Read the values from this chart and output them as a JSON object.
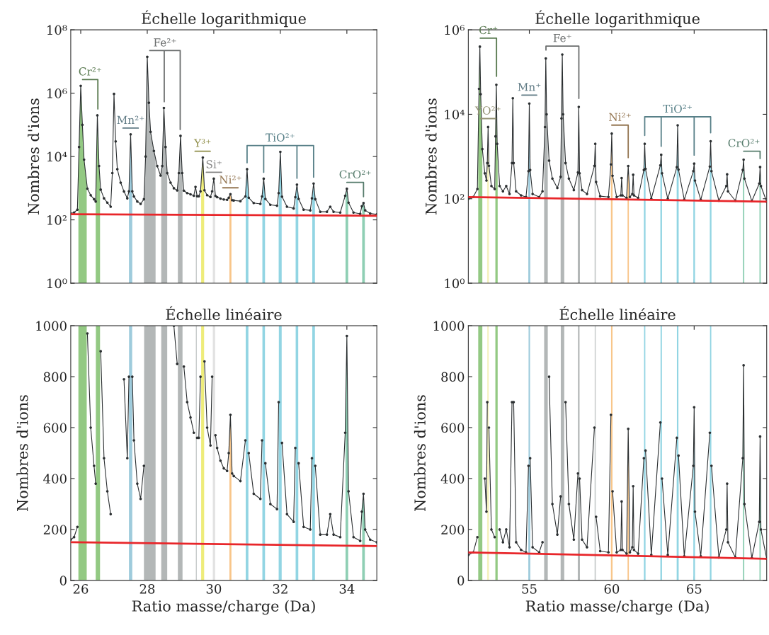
{
  "chart_data": [
    {
      "type": "line",
      "title": "Échelle logarithmique",
      "ylabel": "Nombres d'ions",
      "log": "y",
      "tick_labels": "y",
      "xlim": [
        25.7,
        34.9
      ],
      "xticks": [
        {
          "value": 26,
          "label": null
        },
        {
          "value": 28,
          "label": null
        },
        {
          "value": 30,
          "label": null
        },
        {
          "value": 32,
          "label": null
        },
        {
          "value": 34,
          "label": null
        }
      ],
      "ylim": [
        1,
        100000000
      ],
      "yticks": [
        {
          "value": 1,
          "label": "10⁰"
        },
        {
          "value": 100,
          "label": "10²"
        },
        {
          "value": 10000,
          "label": "10⁴"
        },
        {
          "value": 1000000,
          "label": "10⁶"
        },
        {
          "value": 100000000,
          "label": "10⁸"
        }
      ],
      "bands": [
        {
          "axis": "x",
          "from": 25.93,
          "to": 26.18,
          "color": "#93c983",
          "label": "Cr²⁺"
        },
        {
          "axis": "x",
          "from": 26.45,
          "to": 26.58,
          "color": "#93c983"
        },
        {
          "axis": "x",
          "from": 27.45,
          "to": 27.55,
          "color": "#9ecbdc",
          "label": "Mn²⁺"
        },
        {
          "axis": "x",
          "from": 27.9,
          "to": 28.25,
          "color": "#b3b7b7",
          "label": "Fe²⁺"
        },
        {
          "axis": "x",
          "from": 28.42,
          "to": 28.6,
          "color": "#b3b7b7"
        },
        {
          "axis": "x",
          "from": 28.92,
          "to": 29.06,
          "color": "#b3b7b7"
        },
        {
          "axis": "x",
          "from": 29.46,
          "to": 29.49,
          "color": "#c8cccc"
        },
        {
          "axis": "x",
          "from": 29.62,
          "to": 29.71,
          "color": "#eeec7a",
          "label": "Y³⁺"
        },
        {
          "axis": "x",
          "from": 29.97,
          "to": 30.04,
          "color": "#e2e2e2",
          "label": "Si⁺"
        },
        {
          "axis": "x",
          "from": 30.47,
          "to": 30.53,
          "color": "#f8c68a",
          "label": "Ni²⁺"
        },
        {
          "axis": "x",
          "from": 30.96,
          "to": 31.04,
          "color": "#92d5e3",
          "label": "TiO²⁺"
        },
        {
          "axis": "x",
          "from": 31.46,
          "to": 31.54,
          "color": "#92d5e3"
        },
        {
          "axis": "x",
          "from": 31.95,
          "to": 32.04,
          "color": "#92d5e3"
        },
        {
          "axis": "x",
          "from": 32.46,
          "to": 32.54,
          "color": "#92d5e3"
        },
        {
          "axis": "x",
          "from": 32.96,
          "to": 33.04,
          "color": "#92d5e3"
        },
        {
          "axis": "x",
          "from": 33.96,
          "to": 34.04,
          "color": "#8fcfb4",
          "label": "CrO²⁺"
        },
        {
          "axis": "x",
          "from": 34.46,
          "to": 34.54,
          "color": "#8fcfb4"
        }
      ],
      "series": [
        {
          "color": "#2b2f31",
          "marker": "circle",
          "x": [
            25.7,
            25.8,
            25.9,
            25.95,
            26.0,
            26.05,
            26.1,
            26.2,
            26.3,
            26.4,
            26.45,
            26.5,
            26.55,
            26.6,
            26.7,
            26.8,
            26.9,
            26.95,
            27.0,
            27.05,
            27.1,
            27.2,
            27.3,
            27.4,
            27.45,
            27.5,
            27.55,
            27.6,
            27.7,
            27.8,
            27.9,
            27.95,
            28.0,
            28.05,
            28.1,
            28.2,
            28.3,
            28.4,
            28.45,
            28.5,
            28.55,
            28.6,
            28.7,
            28.8,
            28.9,
            28.95,
            29.0,
            29.05,
            29.1,
            29.2,
            29.3,
            29.4,
            29.45,
            29.5,
            29.55,
            29.6,
            29.67,
            29.72,
            29.8,
            29.9,
            29.95,
            30.0,
            30.05,
            30.1,
            30.2,
            30.3,
            30.4,
            30.45,
            30.5,
            30.55,
            30.6,
            30.8,
            30.95,
            31.0,
            31.05,
            31.2,
            31.4,
            31.45,
            31.5,
            31.55,
            31.7,
            31.9,
            31.95,
            32.0,
            32.05,
            32.2,
            32.4,
            32.45,
            32.5,
            32.55,
            32.7,
            32.9,
            32.95,
            33.0,
            33.05,
            33.2,
            33.4,
            33.5,
            33.6,
            33.8,
            33.95,
            34.0,
            34.05,
            34.2,
            34.4,
            34.45,
            34.5,
            34.55,
            34.7,
            34.9
          ],
          "values": [
            160,
            170,
            210,
            20000,
            1700000,
            100000,
            8000,
            970,
            600,
            450,
            380,
            200000,
            5000,
            900,
            480,
            350,
            260,
            3000,
            950000,
            30000,
            4000,
            1500,
            790,
            480,
            800,
            50000,
            800,
            550,
            380,
            320,
            450,
            10000,
            14000000,
            500000,
            60000,
            15000,
            5000,
            2500,
            5000,
            340000,
            20000,
            3000,
            1500,
            1000,
            850,
            3000,
            45000,
            3000,
            840,
            700,
            640,
            580,
            1100,
            560,
            560,
            800,
            9300,
            860,
            600,
            530,
            800,
            2000,
            570,
            520,
            470,
            440,
            430,
            500,
            650,
            420,
            410,
            390,
            550,
            4000,
            500,
            340,
            320,
            550,
            2000,
            460,
            300,
            280,
            700,
            14000,
            540,
            260,
            230,
            520,
            1300,
            460,
            210,
            200,
            480,
            1400,
            450,
            180,
            180,
            260,
            180,
            170,
            580,
            960,
            350,
            170,
            155,
            270,
            340,
            200,
            160,
            150
          ]
        },
        {
          "color": "#e8262a",
          "x": [
            25.7,
            34.9
          ],
          "values": [
            150,
            135
          ]
        }
      ]
    },
    {
      "type": "line",
      "title": "Échelle logarithmique",
      "ylabel": "Nombres d'ions",
      "log": "y",
      "tick_labels": "y",
      "xlim": [
        51.3,
        69.4
      ],
      "xticks": [
        {
          "value": 55,
          "label": null
        },
        {
          "value": 60,
          "label": null
        },
        {
          "value": 65,
          "label": null
        }
      ],
      "ylim": [
        1,
        1000000
      ],
      "yticks": [
        {
          "value": 1,
          "label": "10⁰"
        },
        {
          "value": 100,
          "label": "10²"
        },
        {
          "value": 10000,
          "label": "10⁴"
        },
        {
          "value": 1000000,
          "label": "10⁶"
        }
      ],
      "bands": [
        {
          "axis": "x",
          "from": 51.9,
          "to": 52.15,
          "color": "#93c983",
          "label": "Cr⁺"
        },
        {
          "axis": "x",
          "from": 52.44,
          "to": 52.56,
          "color": "#f5f2c0",
          "label": "YO²⁺"
        },
        {
          "axis": "x",
          "from": 52.94,
          "to": 53.08,
          "color": "#93c983"
        },
        {
          "axis": "x",
          "from": 54.94,
          "to": 55.06,
          "color": "#9ecbdc",
          "label": "Mn⁺"
        },
        {
          "axis": "x",
          "from": 55.9,
          "to": 56.12,
          "color": "#b3b7b7",
          "label": "Fe⁺"
        },
        {
          "axis": "x",
          "from": 56.9,
          "to": 57.12,
          "color": "#b3b7b7"
        },
        {
          "axis": "x",
          "from": 57.94,
          "to": 58.07,
          "color": "#b3b7b7"
        },
        {
          "axis": "x",
          "from": 58.96,
          "to": 59.04,
          "color": "#c8cccc"
        },
        {
          "axis": "x",
          "from": 59.95,
          "to": 60.05,
          "color": "#f8c68a",
          "label": "Ni²⁺"
        },
        {
          "axis": "x",
          "from": 60.96,
          "to": 61.04,
          "color": "#f8c68a"
        },
        {
          "axis": "x",
          "from": 61.95,
          "to": 62.05,
          "color": "#92d5e3",
          "label": "TiO²⁺"
        },
        {
          "axis": "x",
          "from": 62.95,
          "to": 63.05,
          "color": "#92d5e3"
        },
        {
          "axis": "x",
          "from": 63.94,
          "to": 64.06,
          "color": "#92d5e3"
        },
        {
          "axis": "x",
          "from": 64.95,
          "to": 65.05,
          "color": "#92d5e3"
        },
        {
          "axis": "x",
          "from": 65.95,
          "to": 66.05,
          "color": "#92d5e3"
        },
        {
          "axis": "x",
          "from": 67.96,
          "to": 68.04,
          "color": "#8fcfb4",
          "label": "CrO²⁺"
        },
        {
          "axis": "x",
          "from": 68.96,
          "to": 69.04,
          "color": "#8fcfb4"
        }
      ],
      "series": [
        {
          "color": "#2b2f31",
          "marker": "circle",
          "x": [
            51.3,
            51.6,
            51.85,
            51.95,
            52.0,
            52.05,
            52.15,
            52.3,
            52.4,
            52.45,
            52.5,
            52.55,
            52.7,
            52.9,
            52.95,
            53.0,
            53.05,
            53.2,
            53.4,
            53.6,
            53.8,
            53.95,
            54.0,
            54.05,
            54.2,
            54.5,
            54.8,
            54.95,
            55.0,
            55.05,
            55.2,
            55.6,
            55.8,
            55.95,
            56.0,
            56.05,
            56.2,
            56.4,
            56.7,
            56.9,
            56.95,
            57.0,
            57.05,
            57.2,
            57.4,
            57.7,
            57.95,
            58.0,
            58.05,
            58.2,
            58.5,
            58.95,
            59.0,
            59.05,
            59.3,
            59.8,
            59.95,
            60.0,
            60.05,
            60.3,
            60.55,
            60.6,
            60.65,
            60.9,
            61.0,
            61.1,
            61.25,
            61.3,
            61.35,
            61.6,
            61.95,
            62.0,
            62.05,
            62.4,
            62.95,
            63.0,
            63.05,
            63.4,
            63.95,
            64.0,
            64.05,
            64.4,
            64.95,
            65.0,
            65.05,
            65.4,
            65.95,
            66.0,
            66.05,
            66.5,
            66.95,
            67.0,
            67.05,
            67.5,
            67.95,
            68.0,
            68.05,
            68.5,
            68.95,
            69.0,
            69.05,
            69.4
          ],
          "values": [
            100,
            110,
            170,
            40000,
            400000,
            30000,
            1500,
            400,
            270,
            700,
            5000,
            600,
            200,
            170,
            3000,
            50000,
            2000,
            200,
            150,
            200,
            130,
            700,
            24000,
            700,
            150,
            120,
            110,
            450,
            18000,
            480,
            130,
            110,
            150,
            5000,
            210000,
            10000,
            800,
            300,
            180,
            330,
            8000,
            260000,
            10000,
            700,
            300,
            160,
            420,
            15000,
            400,
            160,
            130,
            600,
            2000,
            250,
            115,
            110,
            650,
            3500,
            350,
            110,
            120,
            310,
            120,
            105,
            595,
            110,
            130,
            370,
            120,
            105,
            480,
            2000,
            510,
            100,
            620,
            1100,
            400,
            100,
            560,
            5500,
            490,
            95,
            450,
            680,
            270,
            95,
            580,
            2300,
            450,
            90,
            200,
            380,
            150,
            90,
            480,
            845,
            300,
            88,
            230,
            565,
            200,
            85
          ]
        },
        {
          "color": "#e8262a",
          "x": [
            51.3,
            69.4
          ],
          "values": [
            110,
            85
          ]
        }
      ]
    },
    {
      "type": "line",
      "title": "Échelle linéaire",
      "ylabel": "Nombres d'ions",
      "xlabel": "Ratio masse/charge (Da)",
      "xlim": [
        25.7,
        34.9
      ],
      "xticks": [
        26,
        28,
        30,
        32,
        34
      ],
      "ylim": [
        0,
        1000
      ],
      "yticks": [
        0,
        200,
        400,
        600,
        800,
        1000
      ],
      "bands": [
        {
          "axis": "x",
          "from": 25.93,
          "to": 26.18,
          "color": "#93c983"
        },
        {
          "axis": "x",
          "from": 26.45,
          "to": 26.58,
          "color": "#93c983"
        },
        {
          "axis": "x",
          "from": 27.45,
          "to": 27.55,
          "color": "#9ecbdc"
        },
        {
          "axis": "x",
          "from": 27.9,
          "to": 28.25,
          "color": "#b3b7b7"
        },
        {
          "axis": "x",
          "from": 28.42,
          "to": 28.6,
          "color": "#b3b7b7"
        },
        {
          "axis": "x",
          "from": 28.92,
          "to": 29.06,
          "color": "#b3b7b7"
        },
        {
          "axis": "x",
          "from": 29.46,
          "to": 29.49,
          "color": "#c8cccc"
        },
        {
          "axis": "x",
          "from": 29.62,
          "to": 29.71,
          "color": "#eeec7a"
        },
        {
          "axis": "x",
          "from": 29.97,
          "to": 30.04,
          "color": "#e2e2e2"
        },
        {
          "axis": "x",
          "from": 30.47,
          "to": 30.53,
          "color": "#f8c68a"
        },
        {
          "axis": "x",
          "from": 30.96,
          "to": 31.04,
          "color": "#92d5e3"
        },
        {
          "axis": "x",
          "from": 31.46,
          "to": 31.54,
          "color": "#92d5e3"
        },
        {
          "axis": "x",
          "from": 31.95,
          "to": 32.04,
          "color": "#92d5e3"
        },
        {
          "axis": "x",
          "from": 32.46,
          "to": 32.54,
          "color": "#92d5e3"
        },
        {
          "axis": "x",
          "from": 32.96,
          "to": 33.04,
          "color": "#92d5e3"
        },
        {
          "axis": "x",
          "from": 33.96,
          "to": 34.04,
          "color": "#8fcfb4"
        },
        {
          "axis": "x",
          "from": 34.46,
          "to": 34.54,
          "color": "#8fcfb4"
        }
      ],
      "series": [
        {
          "color": "#2b2f31",
          "marker": "circle",
          "x": [
            25.7,
            25.8,
            25.9,
            25.95,
            26.0,
            26.05,
            26.1,
            26.2,
            26.3,
            26.4,
            26.45,
            26.5,
            26.55,
            26.6,
            26.7,
            26.8,
            26.9,
            26.95,
            27.0,
            27.05,
            27.1,
            27.2,
            27.3,
            27.4,
            27.45,
            27.5,
            27.55,
            27.6,
            27.7,
            27.8,
            27.9,
            27.95,
            28.0,
            28.05,
            28.1,
            28.2,
            28.3,
            28.4,
            28.45,
            28.5,
            28.55,
            28.6,
            28.7,
            28.8,
            28.9,
            28.95,
            29.0,
            29.05,
            29.1,
            29.2,
            29.3,
            29.4,
            29.45,
            29.5,
            29.55,
            29.6,
            29.67,
            29.72,
            29.8,
            29.9,
            29.95,
            30.0,
            30.05,
            30.1,
            30.2,
            30.3,
            30.4,
            30.45,
            30.5,
            30.55,
            30.6,
            30.8,
            30.95,
            31.0,
            31.05,
            31.2,
            31.4,
            31.45,
            31.5,
            31.55,
            31.7,
            31.9,
            31.95,
            32.0,
            32.05,
            32.2,
            32.4,
            32.45,
            32.5,
            32.55,
            32.7,
            32.9,
            32.95,
            33.0,
            33.05,
            33.2,
            33.4,
            33.5,
            33.6,
            33.8,
            33.95,
            34.0,
            34.05,
            34.2,
            34.4,
            34.45,
            34.5,
            34.55,
            34.7,
            34.9
          ],
          "values": [
            160,
            170,
            210,
            null,
            null,
            null,
            null,
            970,
            600,
            450,
            380,
            null,
            null,
            900,
            480,
            350,
            260,
            null,
            null,
            null,
            null,
            null,
            790,
            480,
            800,
            null,
            800,
            550,
            380,
            320,
            450,
            null,
            null,
            null,
            null,
            null,
            null,
            null,
            null,
            null,
            null,
            null,
            null,
            1000,
            850,
            null,
            null,
            null,
            840,
            700,
            640,
            580,
            null,
            560,
            560,
            800,
            null,
            860,
            600,
            530,
            800,
            null,
            570,
            520,
            470,
            440,
            430,
            500,
            650,
            420,
            410,
            390,
            550,
            null,
            500,
            340,
            320,
            550,
            null,
            460,
            300,
            280,
            700,
            null,
            540,
            260,
            230,
            520,
            null,
            460,
            210,
            200,
            480,
            null,
            450,
            180,
            180,
            260,
            180,
            170,
            580,
            960,
            350,
            170,
            155,
            270,
            340,
            200,
            160,
            150
          ]
        },
        {
          "color": "#e8262a",
          "x": [
            25.7,
            34.9
          ],
          "values": [
            150,
            135
          ]
        }
      ]
    },
    {
      "type": "line",
      "title": "Échelle linéaire",
      "ylabel": "Nombres d'ions",
      "xlabel": "Ratio masse/charge (Da)",
      "xlim": [
        51.3,
        69.4
      ],
      "xticks": [
        55,
        60,
        65
      ],
      "ylim": [
        0,
        1000
      ],
      "yticks": [
        0,
        200,
        400,
        600,
        800,
        1000
      ],
      "bands": [
        {
          "axis": "x",
          "from": 51.9,
          "to": 52.15,
          "color": "#93c983"
        },
        {
          "axis": "x",
          "from": 52.44,
          "to": 52.56,
          "color": "#f5f2c0"
        },
        {
          "axis": "x",
          "from": 52.94,
          "to": 53.08,
          "color": "#93c983"
        },
        {
          "axis": "x",
          "from": 54.94,
          "to": 55.06,
          "color": "#9ecbdc"
        },
        {
          "axis": "x",
          "from": 55.9,
          "to": 56.12,
          "color": "#b3b7b7"
        },
        {
          "axis": "x",
          "from": 56.9,
          "to": 57.12,
          "color": "#b3b7b7"
        },
        {
          "axis": "x",
          "from": 57.94,
          "to": 58.07,
          "color": "#b3b7b7"
        },
        {
          "axis": "x",
          "from": 58.96,
          "to": 59.04,
          "color": "#c8cccc"
        },
        {
          "axis": "x",
          "from": 59.95,
          "to": 60.05,
          "color": "#f8c68a"
        },
        {
          "axis": "x",
          "from": 60.96,
          "to": 61.04,
          "color": "#f8c68a"
        },
        {
          "axis": "x",
          "from": 61.95,
          "to": 62.05,
          "color": "#92d5e3"
        },
        {
          "axis": "x",
          "from": 62.95,
          "to": 63.05,
          "color": "#92d5e3"
        },
        {
          "axis": "x",
          "from": 63.94,
          "to": 64.06,
          "color": "#92d5e3"
        },
        {
          "axis": "x",
          "from": 64.95,
          "to": 65.05,
          "color": "#92d5e3"
        },
        {
          "axis": "x",
          "from": 65.95,
          "to": 66.05,
          "color": "#92d5e3"
        },
        {
          "axis": "x",
          "from": 67.96,
          "to": 68.04,
          "color": "#8fcfb4"
        },
        {
          "axis": "x",
          "from": 68.96,
          "to": 69.04,
          "color": "#8fcfb4"
        }
      ],
      "series": [
        {
          "color": "#2b2f31",
          "marker": "circle",
          "x": [
            51.3,
            51.6,
            51.85,
            51.95,
            52.0,
            52.05,
            52.15,
            52.3,
            52.4,
            52.45,
            52.5,
            52.55,
            52.7,
            52.9,
            52.95,
            53.0,
            53.05,
            53.2,
            53.4,
            53.6,
            53.8,
            53.95,
            54.0,
            54.05,
            54.2,
            54.5,
            54.8,
            54.95,
            55.0,
            55.05,
            55.2,
            55.6,
            55.8,
            55.95,
            56.0,
            56.05,
            56.2,
            56.4,
            56.7,
            56.9,
            56.95,
            57.0,
            57.05,
            57.2,
            57.4,
            57.7,
            57.95,
            58.0,
            58.05,
            58.2,
            58.5,
            58.95,
            59.0,
            59.05,
            59.3,
            59.8,
            59.95,
            60.0,
            60.05,
            60.3,
            60.55,
            60.6,
            60.65,
            60.9,
            61.0,
            61.1,
            61.25,
            61.3,
            61.35,
            61.6,
            61.95,
            62.0,
            62.05,
            62.4,
            62.95,
            63.0,
            63.05,
            63.4,
            63.95,
            64.0,
            64.05,
            64.4,
            64.95,
            65.0,
            65.05,
            65.4,
            65.95,
            66.0,
            66.05,
            66.5,
            66.95,
            67.0,
            67.05,
            67.5,
            67.95,
            68.0,
            68.05,
            68.5,
            68.95,
            69.0,
            69.05,
            69.4
          ],
          "values": [
            100,
            110,
            170,
            null,
            null,
            null,
            null,
            400,
            270,
            700,
            null,
            600,
            200,
            170,
            null,
            null,
            null,
            200,
            150,
            200,
            130,
            700,
            null,
            700,
            150,
            120,
            110,
            450,
            null,
            480,
            130,
            110,
            150,
            null,
            null,
            null,
            800,
            300,
            180,
            330,
            null,
            null,
            null,
            700,
            300,
            160,
            420,
            null,
            400,
            160,
            130,
            600,
            null,
            250,
            115,
            110,
            650,
            null,
            350,
            110,
            120,
            310,
            120,
            105,
            595,
            110,
            130,
            370,
            120,
            105,
            480,
            null,
            510,
            100,
            620,
            null,
            400,
            100,
            560,
            null,
            490,
            95,
            450,
            680,
            270,
            95,
            580,
            null,
            450,
            90,
            200,
            380,
            150,
            90,
            480,
            845,
            300,
            88,
            230,
            565,
            200,
            85
          ]
        },
        {
          "color": "#e8262a",
          "x": [
            51.3,
            69.4
          ],
          "values": [
            110,
            85
          ]
        }
      ]
    }
  ]
}
